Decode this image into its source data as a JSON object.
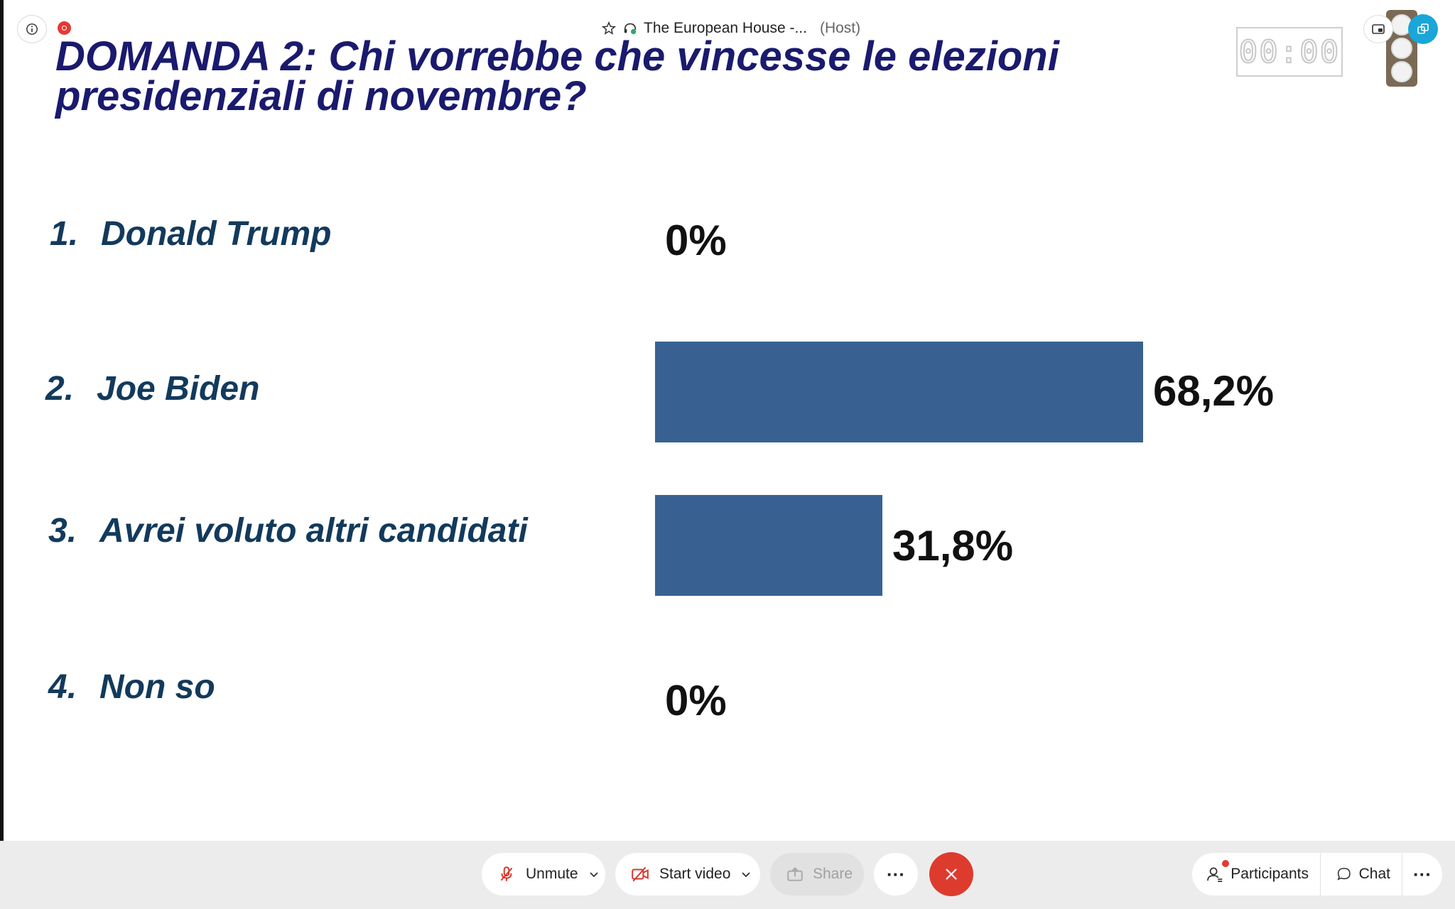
{
  "window": {
    "title": "The European House -...",
    "role": "(Host)"
  },
  "timer": {
    "display": "00:00"
  },
  "slide": {
    "title": "DOMANDA 2: Chi vorrebbe che vincesse le elezioni presidenziali di novembre?",
    "options": [
      {
        "number": "1.",
        "label": "Donald Trump",
        "percent_text": "0%",
        "value": 0
      },
      {
        "number": "2.",
        "label": "Joe Biden",
        "percent_text": "68,2%",
        "value": 68.2
      },
      {
        "number": "3.",
        "label": "Avrei voluto altri candidati",
        "percent_text": "31,8%",
        "value": 31.8
      },
      {
        "number": "4.",
        "label": "Non so",
        "percent_text": "0%",
        "value": 0
      }
    ],
    "bar_color": "#386192"
  },
  "chart_data": {
    "type": "bar",
    "categories": [
      "Donald Trump",
      "Joe Biden",
      "Avrei voluto altri candidati",
      "Non so"
    ],
    "values": [
      0,
      68.2,
      31.8,
      0
    ],
    "data_labels": [
      "0%",
      "68,2%",
      "31,8%",
      "0%"
    ],
    "title": "DOMANDA 2: Chi vorrebbe che vincesse le elezioni presidenziali di novembre?",
    "orientation": "horizontal",
    "color": "#386192"
  },
  "toolbar": {
    "unmute_label": "Unmute",
    "start_video_label": "Start video",
    "share_label": "Share",
    "participants_label": "Participants",
    "chat_label": "Chat",
    "more_glyph": "···"
  },
  "icons": {
    "info": "info-icon",
    "recording": "recording-indicator-icon",
    "pin": "pin-icon",
    "audio": "audio-connection-icon",
    "pip": "picture-in-picture-icon",
    "expand": "expand-icon",
    "mic_muted": "mic-muted-icon",
    "video_off": "video-off-icon",
    "share": "share-icon",
    "leave": "leave-meeting-icon",
    "participants": "participants-icon",
    "chat": "chat-icon"
  },
  "colors": {
    "leave": "#de3b2f",
    "expand": "#1aa6d9",
    "notification": "#e53935"
  }
}
